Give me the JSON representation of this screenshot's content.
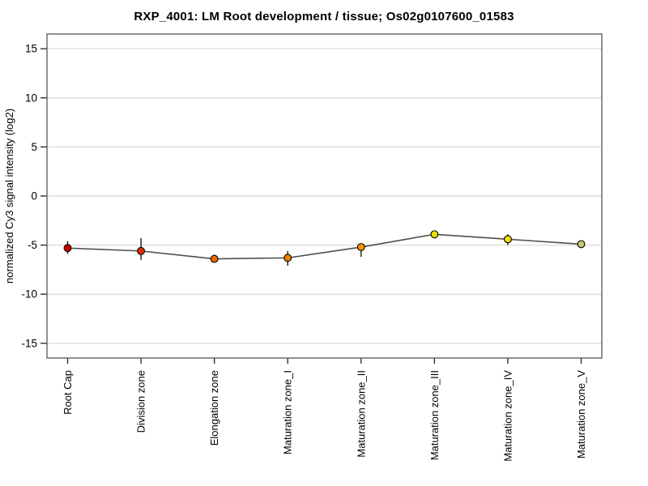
{
  "chart_data": {
    "type": "line",
    "title": "RXP_4001: LM Root development / tissue; Os02g0107600_01583",
    "xlabel": "",
    "ylabel": "normalized Cy3 signal intensity (log2)",
    "categories": [
      "Root Cap",
      "Division zone",
      "Elongation zone",
      "Maturation zone_I",
      "Maturation zone_II",
      "Maturation zone_III",
      "Maturation zone_IV",
      "Maturation zone_V"
    ],
    "values": [
      -5.3,
      -5.6,
      -6.4,
      -6.3,
      -5.2,
      -3.9,
      -4.4,
      -4.9
    ],
    "error_low": [
      -5.9,
      -6.5,
      -6.8,
      -7.1,
      -6.2,
      -4.1,
      -5.0,
      -5.2
    ],
    "error_high": [
      -4.6,
      -4.3,
      -6.0,
      -5.6,
      -4.8,
      -3.7,
      -3.9,
      -4.6
    ],
    "point_colors": [
      "#cc0000",
      "#dd2e00",
      "#ee6a00",
      "#ef7d00",
      "#f59300",
      "#ecdf00",
      "#ecdf00",
      "#c8c870"
    ],
    "ylim": [
      -16.5,
      16.5
    ],
    "yticks": [
      -15,
      -10,
      -5,
      0,
      5,
      10,
      15
    ],
    "grid": true,
    "legend": "none",
    "line_color": "#4d4d4d",
    "grid_color": "#e6e6e6",
    "frame_color": "#555555",
    "tick_color": "#222222",
    "error_bar_color": "#1a1a1a",
    "marker_outline": "#000000",
    "background": "#ffffff"
  }
}
